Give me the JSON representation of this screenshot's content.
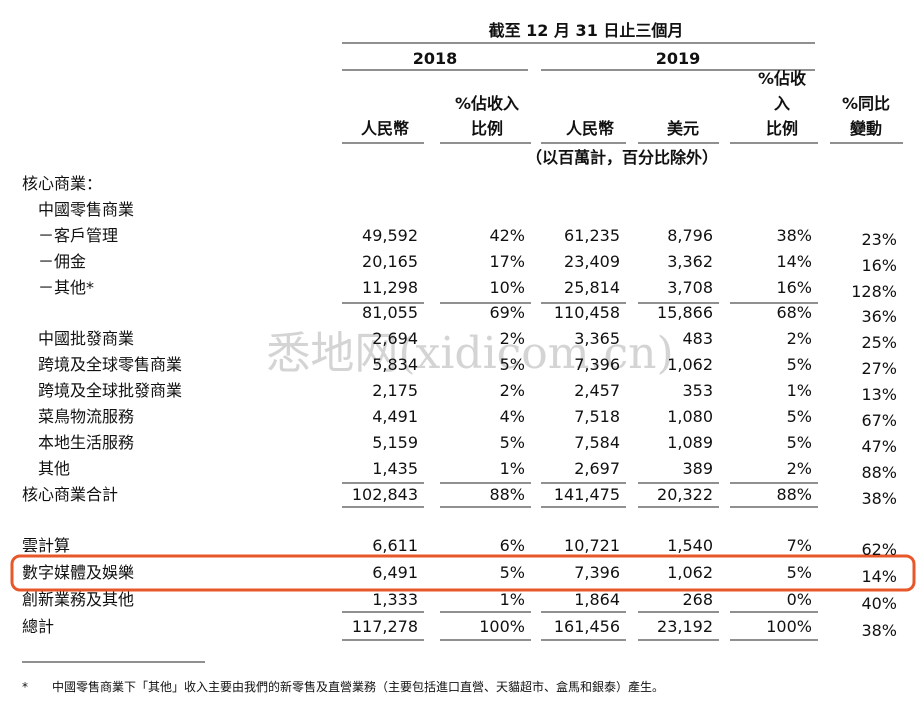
{
  "header": {
    "period": "截至 12 月 31 日止三個月",
    "years": [
      "2018",
      "2019"
    ],
    "columns": [
      [
        "人民幣"
      ],
      [
        "%佔收入",
        "比例"
      ],
      [
        "人民幣"
      ],
      [
        "美元"
      ],
      [
        "%佔收",
        "入",
        "比例"
      ],
      [
        "%同比",
        "變動"
      ]
    ],
    "unit_note": "（以百萬計，百分比除外）"
  },
  "table": {
    "rows": [
      {
        "label": "核心商業：",
        "indent": 0,
        "cells": []
      },
      {
        "label": "中國零售商業",
        "indent": 1,
        "cells": []
      },
      {
        "label": "－客戶管理",
        "indent": 1,
        "cells": [
          "49,592",
          "42%",
          "61,235",
          "8,796",
          "38%",
          "23%"
        ]
      },
      {
        "label": "－佣金",
        "indent": 1,
        "cells": [
          "20,165",
          "17%",
          "23,409",
          "3,362",
          "14%",
          "16%"
        ]
      },
      {
        "label": "－其他*",
        "indent": 1,
        "cells": [
          "11,298",
          "10%",
          "25,814",
          "3,708",
          "16%",
          "128%"
        ]
      },
      {
        "label": "",
        "indent": 1,
        "cells": [
          "81,055",
          "69%",
          "110,458",
          "15,866",
          "68%",
          "36%"
        ]
      },
      {
        "label": "中國批發商業",
        "indent": 1,
        "cells": [
          "2,694",
          "2%",
          "3,365",
          "483",
          "2%",
          "25%"
        ]
      },
      {
        "label": "跨境及全球零售商業",
        "indent": 1,
        "cells": [
          "5,834",
          "5%",
          "7,396",
          "1,062",
          "5%",
          "27%"
        ]
      },
      {
        "label": "跨境及全球批發商業",
        "indent": 1,
        "cells": [
          "2,175",
          "2%",
          "2,457",
          "353",
          "1%",
          "13%"
        ]
      },
      {
        "label": "菜鳥物流服務",
        "indent": 1,
        "cells": [
          "4,491",
          "4%",
          "7,518",
          "1,080",
          "5%",
          "67%"
        ]
      },
      {
        "label": "本地生活服務",
        "indent": 1,
        "cells": [
          "5,159",
          "5%",
          "7,584",
          "1,089",
          "5%",
          "47%"
        ]
      },
      {
        "label": "其他",
        "indent": 1,
        "cells": [
          "1,435",
          "1%",
          "2,697",
          "389",
          "2%",
          "88%"
        ]
      },
      {
        "label": "核心商業合計",
        "indent": 0,
        "cells": [
          "102,843",
          "88%",
          "141,475",
          "20,322",
          "88%",
          "38%"
        ]
      },
      {
        "label": "雲計算",
        "indent": 0,
        "cells": [
          "6,611",
          "6%",
          "10,721",
          "1,540",
          "7%",
          "62%"
        ]
      },
      {
        "label": "數字媒體及娛樂",
        "indent": 0,
        "cells": [
          "6,491",
          "5%",
          "7,396",
          "1,062",
          "5%",
          "14%"
        ]
      },
      {
        "label": "創新業務及其他",
        "indent": 0,
        "cells": [
          "1,333",
          "1%",
          "1,864",
          "268",
          "0%",
          "40%"
        ]
      },
      {
        "label": "總計",
        "indent": 0,
        "cells": [
          "117,278",
          "100%",
          "161,456",
          "23,192",
          "100%",
          "38%"
        ]
      }
    ]
  },
  "footnote": {
    "mark": "*",
    "text": "中國零售商業下「其他」收入主要由我們的新零售及直營業務（主要包括進口直營、天貓超市、盒馬和銀泰）產生。"
  },
  "watermark": "悉地网(xidicom.cn)"
}
